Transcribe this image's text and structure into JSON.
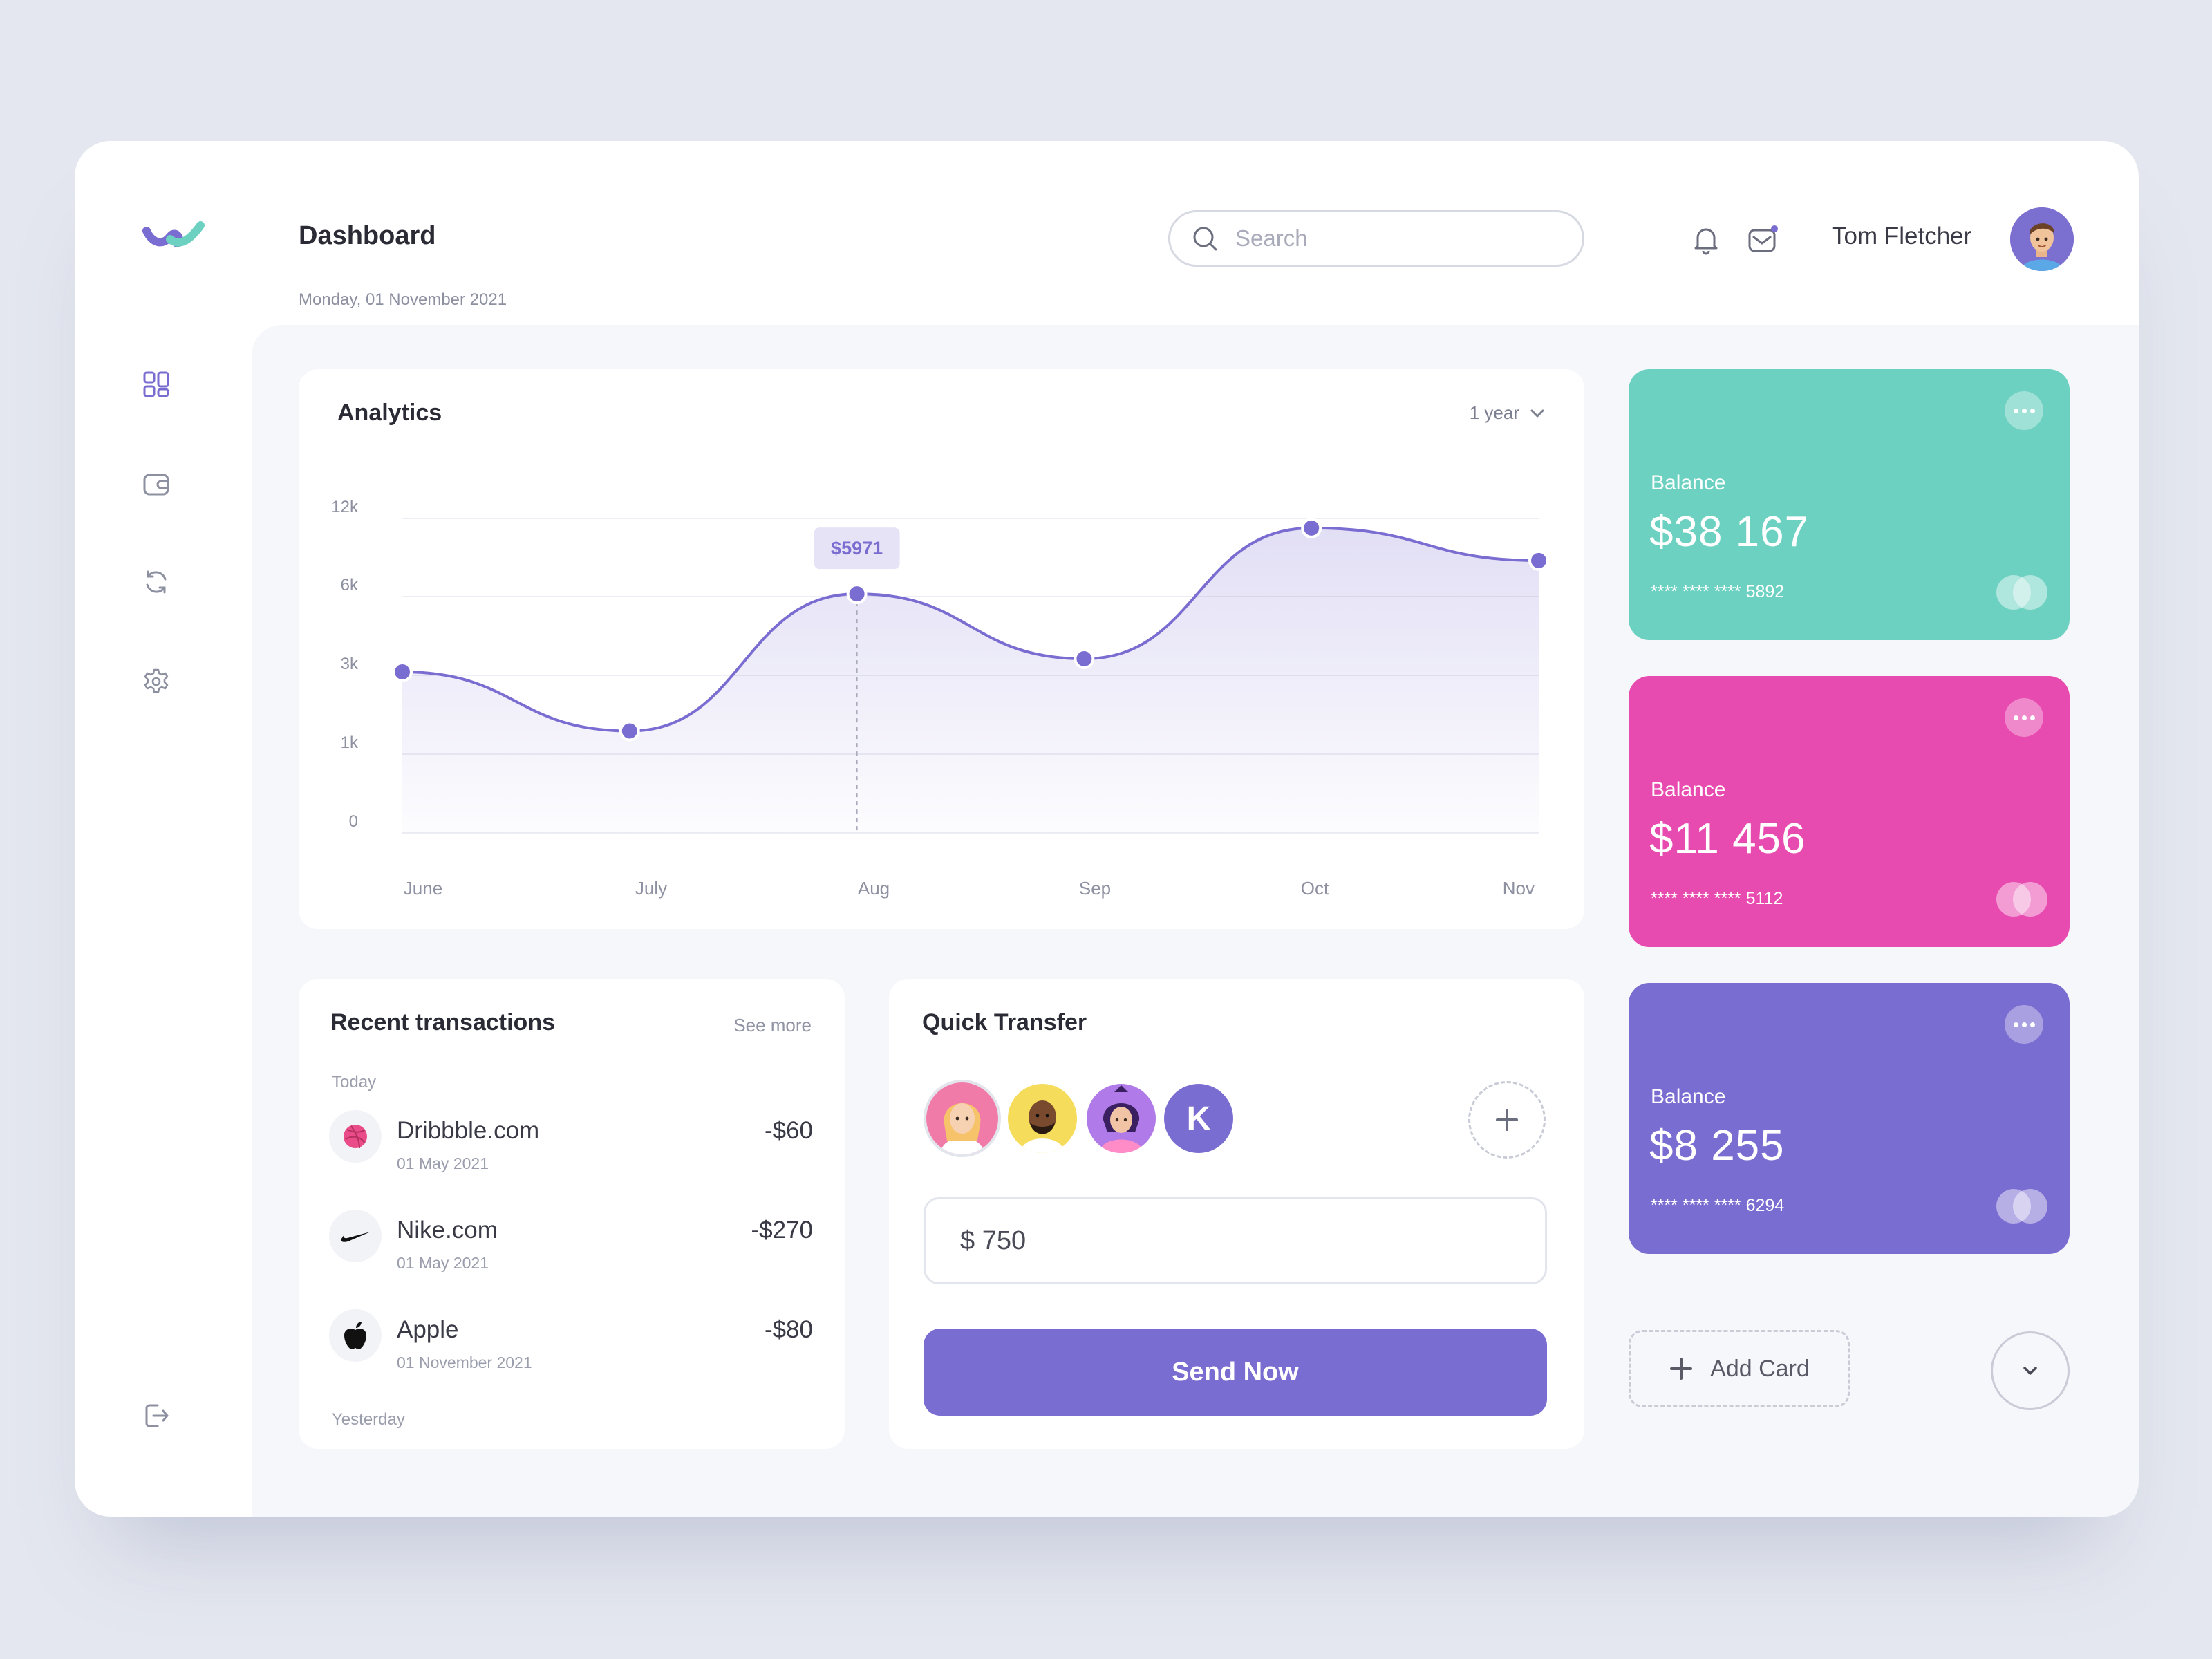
{
  "header": {
    "title": "Dashboard",
    "date": "Monday, 01 November 2021",
    "search_placeholder": "Search",
    "user_name": "Tom Fletcher"
  },
  "sidebar": {
    "items": [
      {
        "icon": "dashboard-icon",
        "active": true
      },
      {
        "icon": "wallet-icon",
        "active": false
      },
      {
        "icon": "refresh-icon",
        "active": false
      },
      {
        "icon": "settings-icon",
        "active": false
      }
    ],
    "logout_icon": "logout-icon"
  },
  "analytics": {
    "title": "Analytics",
    "range": "1 year",
    "tooltip": "$5971"
  },
  "chart_data": {
    "type": "area",
    "categories": [
      "June",
      "July",
      "Aug",
      "Sep",
      "Oct",
      "Nov"
    ],
    "y_tick_labels": [
      "12k",
      "6k",
      "3k",
      "1k",
      "0"
    ],
    "x": [
      "Jun",
      "Jul",
      "Aug",
      "Sep",
      "Oct",
      "Nov"
    ],
    "y": [
      3000,
      1500,
      5971,
      3500,
      11000,
      8500
    ],
    "highlight_index": 2,
    "grid": true,
    "color": "#7a6dd1"
  },
  "transactions": {
    "title": "Recent transactions",
    "see_more": "See more",
    "group_today": "Today",
    "group_yesterday": "Yesterday",
    "items": [
      {
        "name": "Dribbble.com",
        "date": "01 May 2021",
        "amount": "-$60",
        "icon": "dribbble-icon"
      },
      {
        "name": "Nike.com",
        "date": "01 May 2021",
        "amount": "-$270",
        "icon": "nike-icon"
      },
      {
        "name": "Apple",
        "date": "01 November 2021",
        "amount": "-$80",
        "icon": "apple-icon"
      }
    ]
  },
  "transfer": {
    "title": "Quick Transfer",
    "recipient_initial": "K",
    "amount": "$ 750",
    "send_label": "Send Now"
  },
  "cards": [
    {
      "label": "Balance",
      "balance": "$38 167",
      "number": "**** **** **** 5892",
      "color": "#6dd1c2"
    },
    {
      "label": "Balance",
      "balance": "$11 456",
      "number": "**** **** **** 5112",
      "color": "#e84bb0"
    },
    {
      "label": "Balance",
      "balance": "$8 255",
      "number": "**** **** **** 6294",
      "color": "#7a6dd1"
    }
  ],
  "add_card_label": "Add Card"
}
